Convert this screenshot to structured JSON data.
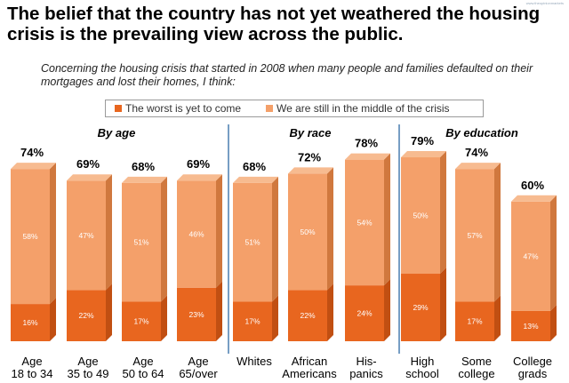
{
  "title": "The belief that the country has not yet weathered the housing crisis is the prevailing view across the public.",
  "subtitle": "Concerning the housing crisis that started in 2008 when many people and families defaulted on their mortgages and lost their homes, I think:",
  "watermark": "www.theopinionmarkets",
  "chart_data": {
    "type": "bar",
    "stacked": true,
    "title": "The belief that the country has not yet weathered the housing crisis is the prevailing view across the public.",
    "subtitle": "Concerning the housing crisis that started in 2008 when many people and families defaulted on their mortgages and lost their homes, I think:",
    "groups": [
      {
        "label": "By age",
        "start": 0,
        "count": 4
      },
      {
        "label": "By race",
        "start": 4,
        "count": 3
      },
      {
        "label": "By education",
        "start": 7,
        "count": 3
      }
    ],
    "categories": [
      [
        "Age",
        "18 to 34"
      ],
      [
        "Age",
        "35 to 49"
      ],
      [
        "Age",
        "50 to 64"
      ],
      [
        "Age",
        "65/over"
      ],
      [
        "Whites"
      ],
      [
        "African",
        "Americans"
      ],
      [
        "His-",
        "panics"
      ],
      [
        "High",
        "school"
      ],
      [
        "Some",
        "college"
      ],
      [
        "College",
        "grads"
      ]
    ],
    "series": [
      {
        "name": "The worst is yet to come",
        "color": "#E8661F",
        "side": "#C14F12",
        "top": "#F08A4E",
        "values": [
          16,
          22,
          17,
          23,
          17,
          22,
          24,
          29,
          17,
          13
        ]
      },
      {
        "name": "We are still in the middle of the crisis",
        "color": "#F4A06A",
        "side": "#D0783E",
        "top": "#F7BB90",
        "values": [
          58,
          47,
          51,
          46,
          51,
          50,
          54,
          50,
          57,
          47
        ]
      }
    ],
    "totals": [
      74,
      69,
      68,
      69,
      68,
      72,
      78,
      79,
      74,
      60
    ],
    "ylim": [
      0,
      80
    ],
    "legend": "top"
  }
}
